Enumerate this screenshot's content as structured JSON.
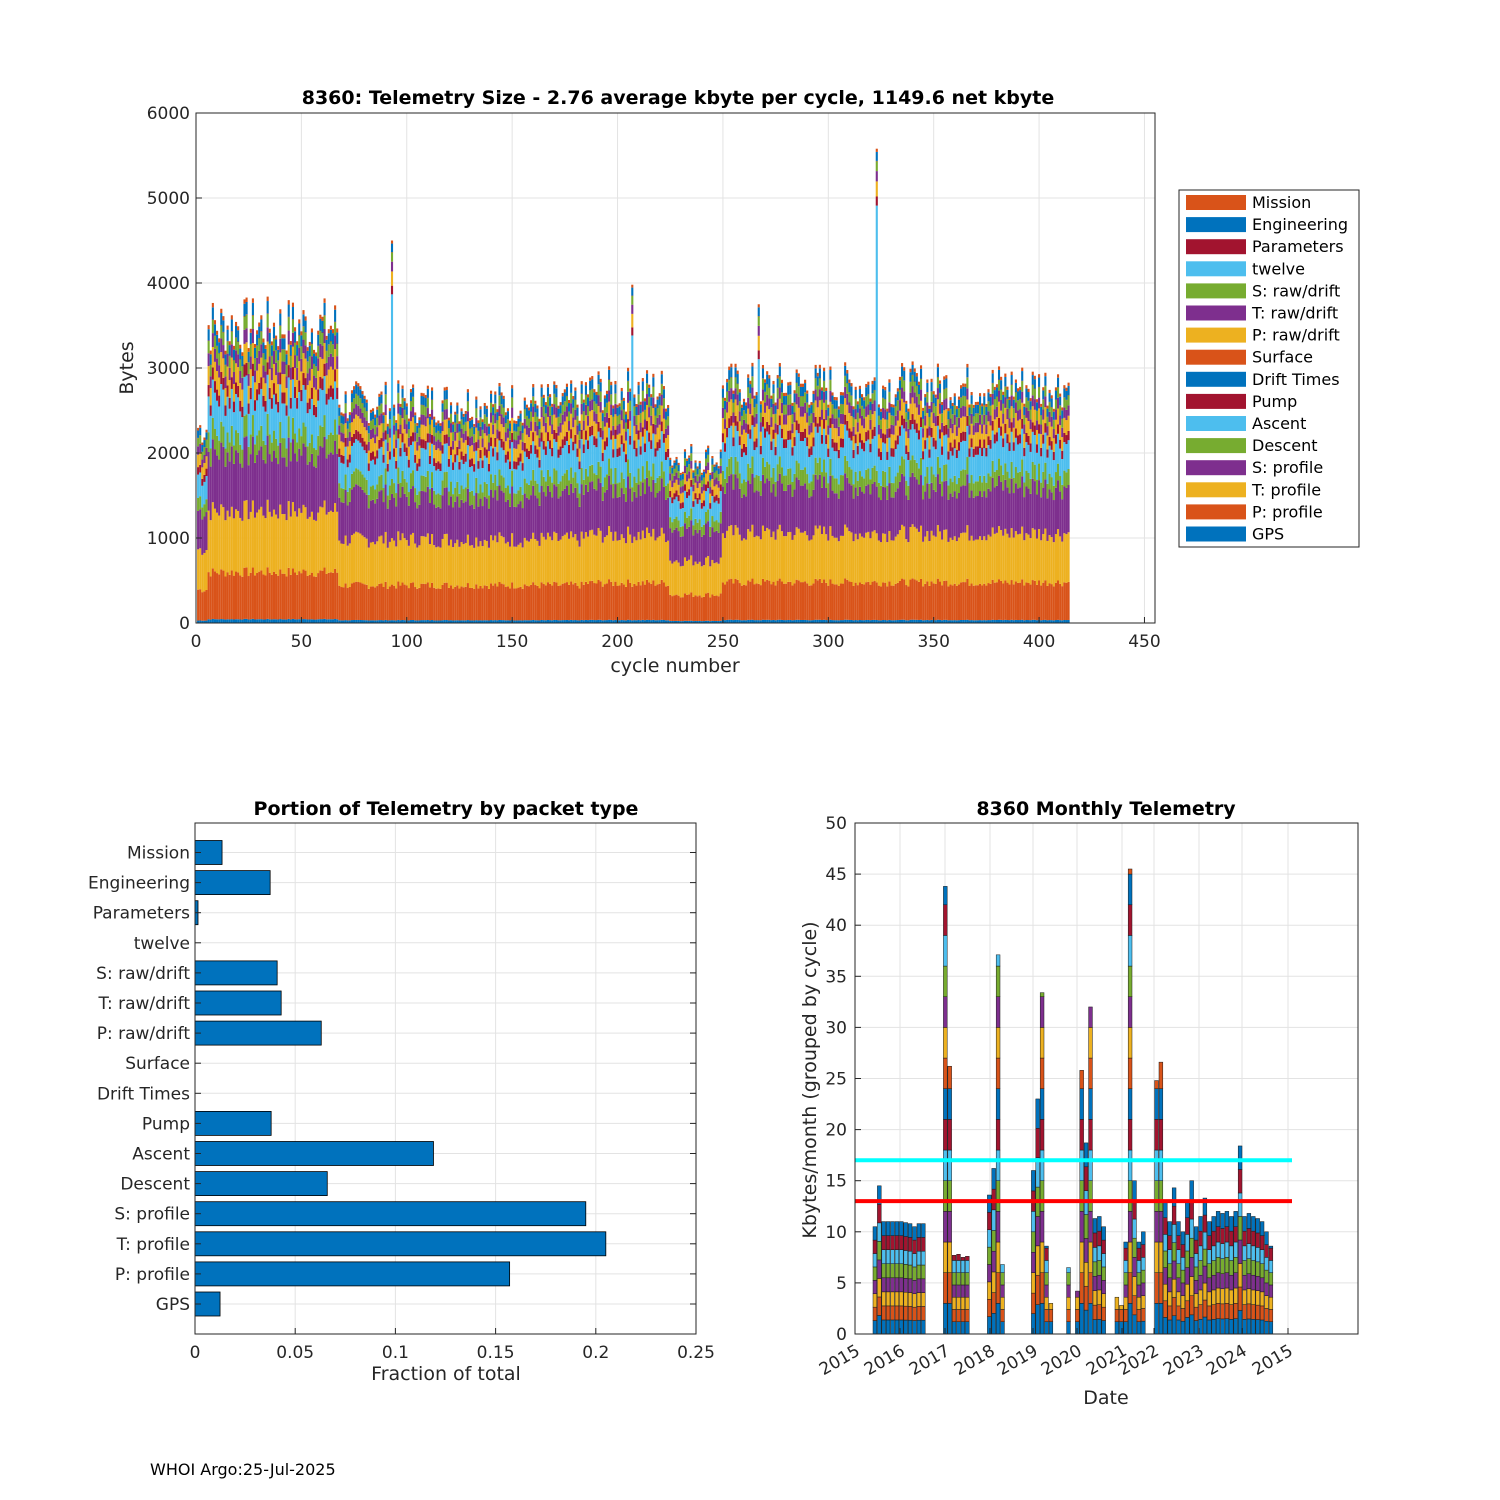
{
  "footer": "WHOI Argo:25-Jul-2025",
  "chart_data": [
    {
      "type": "bar",
      "subtype": "stacked",
      "title": "8360: Telemetry Size - 2.76 average kbyte per cycle, 1149.6 net kbyte",
      "xlabel": "cycle number",
      "ylabel": "Bytes",
      "xlim": [
        0,
        455
      ],
      "ylim": [
        0,
        6000
      ],
      "xticks": [
        0,
        50,
        100,
        150,
        200,
        250,
        300,
        350,
        400,
        450
      ],
      "yticks": [
        0,
        1000,
        2000,
        3000,
        4000,
        5000,
        6000
      ],
      "grid": true,
      "legend_position": "right",
      "legend": [
        "Mission",
        "Engineering",
        "Parameters",
        "twelve",
        "S: raw/drift",
        "T: raw/drift",
        "P: raw/drift",
        "Surface",
        "Drift Times",
        "Pump",
        "Ascent",
        "Descent",
        "S: profile",
        "T: profile",
        "P: profile",
        "GPS"
      ],
      "colors": {
        "GPS": "#0072BD",
        "P: profile": "#D95319",
        "T: profile": "#EDB120",
        "S: profile": "#7E2F8E",
        "Descent": "#77AC30",
        "Ascent": "#4DBEEE",
        "Pump": "#A2142F",
        "Drift Times": "#0072BD",
        "Surface": "#D95319",
        "P: raw/drift": "#EDB120",
        "T: raw/drift": "#7E2F8E",
        "S: raw/drift": "#77AC30",
        "twelve": "#4DBEEE",
        "Parameters": "#A2142F",
        "Engineering": "#0072BD",
        "Mission": "#D95319"
      },
      "approx_segments": [
        {
          "from": 1,
          "to": 6,
          "total": 2300
        },
        {
          "from": 6,
          "to": 68,
          "total": 3500
        },
        {
          "from": 68,
          "to": 185,
          "total": 2600
        },
        {
          "from": 185,
          "to": 225,
          "total": 2750
        },
        {
          "from": 225,
          "to": 250,
          "total": 1950
        },
        {
          "from": 250,
          "to": 415,
          "total": 2800
        }
      ],
      "spikes": [
        {
          "x": 93,
          "y": 4500
        },
        {
          "x": 207,
          "y": 3980
        },
        {
          "x": 267,
          "y": 3750
        },
        {
          "x": 323,
          "y": 5580
        }
      ]
    },
    {
      "type": "bar",
      "subtype": "horizontal",
      "title": "Portion of Telemetry by packet type",
      "xlabel": "Fraction of total",
      "xlim": [
        0,
        0.25
      ],
      "xticks": [
        0,
        0.05,
        0.1,
        0.15,
        0.2,
        0.25
      ],
      "xtick_labels": [
        "0",
        "0.05",
        "0.1",
        "0.15",
        "0.2",
        "0.25"
      ],
      "grid": true,
      "color": "#0072BD",
      "categories": [
        "GPS",
        "P: profile",
        "T: profile",
        "S: profile",
        "Descent",
        "Ascent",
        "Pump",
        "Drift Times",
        "Surface",
        "P: raw/drift",
        "T: raw/drift",
        "S: raw/drift",
        "twelve",
        "Parameters",
        "Engineering",
        "Mission"
      ],
      "values": [
        0.0125,
        0.157,
        0.205,
        0.195,
        0.066,
        0.119,
        0.038,
        0.0,
        0.0,
        0.063,
        0.043,
        0.041,
        0.0,
        0.0015,
        0.0375,
        0.0135
      ]
    },
    {
      "type": "bar",
      "subtype": "stacked",
      "title": "8360 Monthly Telemetry",
      "xlabel": "Date",
      "ylabel": "Kbytes/month (grouped by cycle)",
      "ylim": [
        0,
        50
      ],
      "yticks": [
        0,
        5,
        10,
        15,
        20,
        25,
        30,
        35,
        40,
        45,
        50
      ],
      "xtick_labels": [
        "2015",
        "2016",
        "2017",
        "2018",
        "2019",
        "2020",
        "2021",
        "2022",
        "2023",
        "2024",
        "2015"
      ],
      "grid": true,
      "hlines": [
        {
          "y": 17,
          "color": "#00FFFF"
        },
        {
          "y": 13,
          "color": "#FF0000"
        }
      ],
      "monthly_totals": [
        10.5,
        14.5,
        11,
        11,
        11,
        11,
        11,
        10.9,
        10.8,
        10.5,
        10.8,
        10.8,
        0,
        0,
        0,
        0,
        43.8,
        26.2,
        7.7,
        7.8,
        7.5,
        7.6,
        0,
        0,
        0,
        0,
        13.6,
        16.2,
        37.1,
        6.8,
        0,
        0,
        0,
        0,
        0,
        0,
        16,
        23,
        33.4,
        8.6,
        3,
        0,
        0,
        0,
        6.5,
        0,
        4.2,
        25.8,
        18.7,
        32,
        11.3,
        11.5,
        10.5,
        0,
        0,
        3.6,
        2.8,
        9,
        45.5,
        15,
        9,
        10,
        0,
        0,
        24.8,
        26.6,
        13,
        11,
        14.3,
        11,
        10,
        13,
        15,
        10.5,
        11.5,
        13.3,
        11,
        11.5,
        12,
        11.8,
        12,
        11.5,
        12,
        18.4,
        11.5,
        11.8,
        11.5,
        11.3,
        11,
        10,
        8.6
      ]
    }
  ]
}
